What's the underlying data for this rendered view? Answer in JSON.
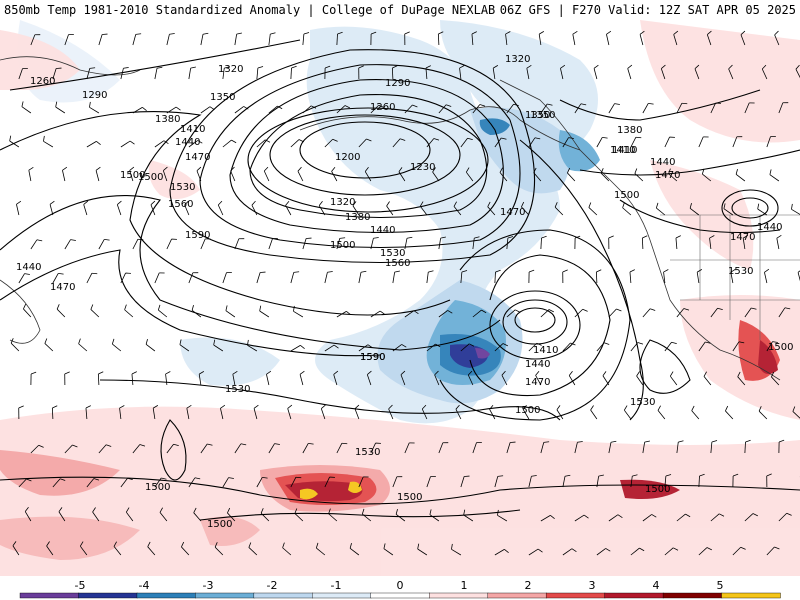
{
  "header": {
    "title_left": "850mb Temp 1981-2010 Standardized Anomaly | College of DuPage NEXLAB",
    "title_right": "06Z GFS | F270 Valid: 12Z SAT APR 05 2025"
  },
  "colorbar": {
    "ticks": [
      "-5",
      "-4",
      "-3",
      "-2",
      "-1",
      "0",
      "1",
      "2",
      "3",
      "4",
      "5"
    ],
    "colors": [
      "#6a3d9a",
      "#253494",
      "#2c7fb8",
      "#6baed6",
      "#bdd7ee",
      "#dceaf6",
      "#ffffff",
      "#fde0e0",
      "#f4a6a6",
      "#e34a4a",
      "#b2182b",
      "#7f0000",
      "#f5c518"
    ]
  },
  "contour_labels": [
    {
      "text": "1260"
    },
    {
      "text": "1290"
    },
    {
      "text": "1320"
    },
    {
      "text": "1350"
    },
    {
      "text": "1380"
    },
    {
      "text": "1410"
    },
    {
      "text": "1440"
    },
    {
      "text": "1470"
    },
    {
      "text": "1500"
    },
    {
      "text": "1530"
    },
    {
      "text": "1560"
    },
    {
      "text": "1590"
    },
    {
      "text": "1200"
    },
    {
      "text": "1230"
    },
    {
      "text": "1260"
    },
    {
      "text": "1290"
    },
    {
      "text": "1320"
    },
    {
      "text": "1350"
    },
    {
      "text": "1380"
    },
    {
      "text": "1410"
    },
    {
      "text": "1440"
    },
    {
      "text": "1470"
    },
    {
      "text": "1500"
    },
    {
      "text": "1530"
    },
    {
      "text": "1560"
    },
    {
      "text": "1590"
    },
    {
      "text": "1320"
    },
    {
      "text": "1350"
    },
    {
      "text": "1380"
    },
    {
      "text": "1410"
    },
    {
      "text": "1440"
    },
    {
      "text": "1470"
    },
    {
      "text": "1500"
    },
    {
      "text": "1440"
    },
    {
      "text": "1470"
    },
    {
      "text": "1530"
    },
    {
      "text": "1500"
    },
    {
      "text": "1410"
    },
    {
      "text": "1440"
    },
    {
      "text": "1470"
    },
    {
      "text": "1500"
    },
    {
      "text": "1530"
    },
    {
      "text": "1590"
    },
    {
      "text": "1530"
    },
    {
      "text": "1530"
    },
    {
      "text": "1500"
    },
    {
      "text": "1500"
    },
    {
      "text": "1500"
    },
    {
      "text": "1500"
    },
    {
      "text": "1440"
    },
    {
      "text": "1470"
    },
    {
      "text": "1500"
    }
  ]
}
